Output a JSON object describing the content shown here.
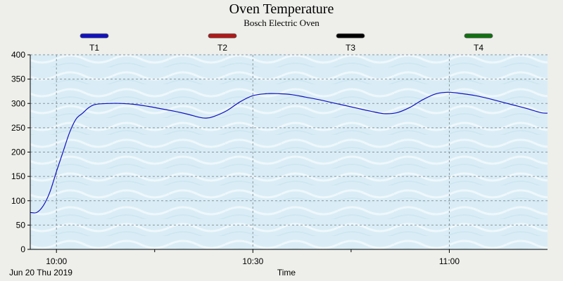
{
  "chart_data": {
    "type": "line",
    "title": "Oven Temperature",
    "subtitle": "Bosch Electric Oven",
    "xlabel": "Time",
    "date_label": "Jun 20 Thu 2019",
    "ylim": [
      0,
      400
    ],
    "y_ticks": [
      0,
      50,
      100,
      150,
      200,
      250,
      300,
      350,
      400
    ],
    "xlim": [
      "09:56",
      "11:15"
    ],
    "x_ticks": [
      {
        "time": "10:00",
        "label": "10:00"
      },
      {
        "time": "10:15",
        "label": ""
      },
      {
        "time": "10:30",
        "label": "10:30"
      },
      {
        "time": "10:45",
        "label": ""
      },
      {
        "time": "11:00",
        "label": "11:00"
      }
    ],
    "grid": true,
    "legend_position": "top",
    "series": [
      {
        "name": "T1",
        "color": "#1010c0",
        "points": [
          [
            "09:56",
            76
          ],
          [
            "09:57",
            76
          ],
          [
            "09:58",
            90
          ],
          [
            "09:59",
            118
          ],
          [
            "10:00",
            160
          ],
          [
            "10:01",
            200
          ],
          [
            "10:02",
            240
          ],
          [
            "10:03",
            268
          ],
          [
            "10:04",
            280
          ],
          [
            "10:05",
            292
          ],
          [
            "10:06",
            298
          ],
          [
            "10:08",
            300
          ],
          [
            "10:10",
            300
          ],
          [
            "10:12",
            298
          ],
          [
            "10:14",
            294
          ],
          [
            "10:16",
            289
          ],
          [
            "10:18",
            284
          ],
          [
            "10:20",
            278
          ],
          [
            "10:22",
            271
          ],
          [
            "10:23",
            270
          ],
          [
            "10:24",
            273
          ],
          [
            "10:26",
            285
          ],
          [
            "10:28",
            303
          ],
          [
            "10:30",
            316
          ],
          [
            "10:32",
            320
          ],
          [
            "10:34",
            320
          ],
          [
            "10:36",
            318
          ],
          [
            "10:38",
            313
          ],
          [
            "10:40",
            308
          ],
          [
            "10:42",
            302
          ],
          [
            "10:44",
            296
          ],
          [
            "10:46",
            290
          ],
          [
            "10:48",
            284
          ],
          [
            "10:50",
            279
          ],
          [
            "10:52",
            281
          ],
          [
            "10:54",
            292
          ],
          [
            "10:56",
            308
          ],
          [
            "10:58",
            320
          ],
          [
            "11:00",
            323
          ],
          [
            "11:02",
            320
          ],
          [
            "11:04",
            316
          ],
          [
            "11:06",
            310
          ],
          [
            "11:08",
            303
          ],
          [
            "11:10",
            296
          ],
          [
            "11:12",
            289
          ],
          [
            "11:14",
            281
          ],
          [
            "11:15",
            280
          ]
        ]
      },
      {
        "name": "T2",
        "color": "#b01818",
        "points": []
      },
      {
        "name": "T3",
        "color": "#000000",
        "points": []
      },
      {
        "name": "T4",
        "color": "#107010",
        "points": []
      }
    ]
  }
}
